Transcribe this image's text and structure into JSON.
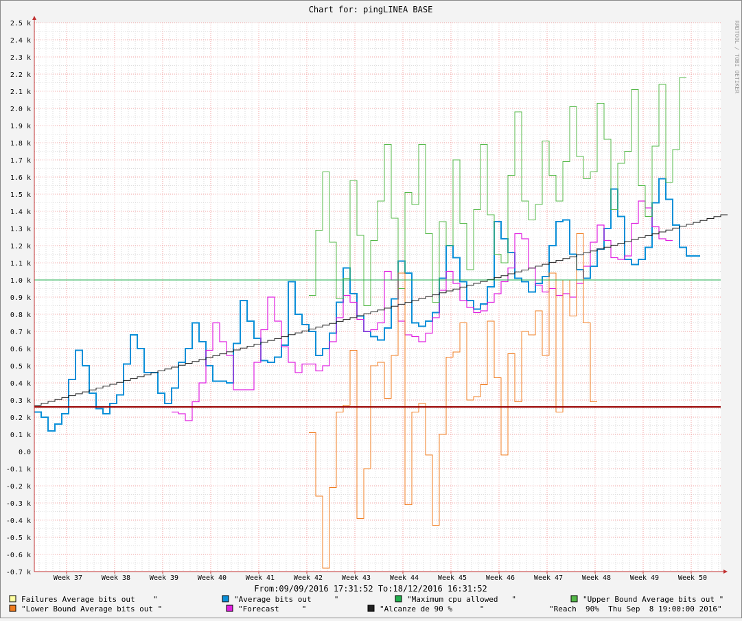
{
  "chart_data": {
    "type": "line",
    "title": "Chart for: pingLINEA BASE",
    "watermark": "RRDTOOL / TOBI OETIKER",
    "date_range": "From:09/09/2016 17:31:52  To:18/12/2016 16:31:52",
    "y_ticks": [
      "2.5 k",
      "2.4 k",
      "2.3 k",
      "2.2 k",
      "2.1 k",
      "2.0 k",
      "1.9 k",
      "1.8 k",
      "1.7 k",
      "1.6 k",
      "1.5 k",
      "1.4 k",
      "1.3 k",
      "1.2 k",
      "1.1 k",
      "1.0 k",
      "0.9 k",
      "0.8 k",
      "0.7 k",
      "0.6 k",
      "0.5 k",
      "0.4 k",
      "0.3 k",
      "0.2 k",
      "0.1 k",
      "0.0",
      "-0.1 k",
      "-0.2 k",
      "-0.3 k",
      "-0.4 k",
      "-0.5 k",
      "-0.6 k",
      "-0.7 k"
    ],
    "ylim": [
      -700,
      2500
    ],
    "x_ticks": [
      "Week 37",
      "Week 38",
      "Week 39",
      "Week 40",
      "Week 41",
      "Week 42",
      "Week 43",
      "Week 44",
      "Week 45",
      "Week 46",
      "Week 47",
      "Week 48",
      "Week 49",
      "Week 50"
    ],
    "grid": true,
    "legend": [
      {
        "label": "Failures Average bits out    \"",
        "color": "#ffffa0"
      },
      {
        "label": "\"Average bits out     \"",
        "color": "#0a8fd8"
      },
      {
        "label": "\"Maximum cpu allowed   \"",
        "color": "#1fae4c"
      },
      {
        "label": "\"Upper Bound Average bits out \"",
        "color": "#54b848"
      },
      {
        "label": "\"Lower Bound Average bits out \"",
        "color": "#f07c20"
      },
      {
        "label": "\"Forecast     \"",
        "color": "#e020e0"
      },
      {
        "label": "\"Alcanze de 90 %      \"",
        "color": "#202020"
      },
      {
        "label": "\"Reach  90%  Thu Sep  8 19:00:00 2016\"",
        "color": null
      }
    ],
    "series": [
      {
        "name": "Average bits out",
        "color": "#0a8fd8",
        "start_x": 50,
        "step_x": 10,
        "values": [
          230,
          200,
          120,
          160,
          220,
          420,
          590,
          500,
          340,
          250,
          220,
          280,
          330,
          510,
          680,
          600,
          460,
          460,
          340,
          280,
          370,
          520,
          600,
          750,
          640,
          500,
          410,
          410,
          400,
          630,
          880,
          760,
          660,
          530,
          520,
          550,
          620,
          990,
          800,
          740,
          700,
          560,
          600,
          690,
          870,
          1070,
          920,
          790,
          700,
          670,
          650,
          720,
          890,
          1110,
          1040,
          750,
          730,
          760,
          810,
          1010,
          1200,
          1130,
          990,
          880,
          830,
          860,
          960,
          1340,
          1240,
          1160,
          1010,
          990,
          930,
          980,
          1020,
          1200,
          1340,
          1350,
          1150,
          1060,
          1010,
          1080,
          1180,
          1300,
          1530,
          1370,
          1120,
          1090,
          1120,
          1190,
          1450,
          1590,
          1470,
          1320,
          1190,
          1140,
          1140
        ]
      },
      {
        "name": "Forecast",
        "color": "#e020e0",
        "start_x": 250,
        "step_x": 10,
        "values": [
          230,
          220,
          180,
          290,
          400,
          590,
          750,
          640,
          560,
          360,
          360,
          360,
          520,
          710,
          900,
          760,
          610,
          520,
          460,
          510,
          510,
          470,
          500,
          640,
          780,
          910,
          870,
          770,
          700,
          710,
          750,
          1050,
          1000,
          760,
          680,
          670,
          640,
          690,
          780,
          940,
          1050,
          980,
          880,
          840,
          810,
          820,
          870,
          920,
          990,
          1070,
          1270,
          1240,
          1070,
          970,
          930,
          950,
          910,
          920,
          900,
          980,
          1080,
          1220,
          1320,
          1230,
          1130,
          1120,
          1140,
          1330,
          1460,
          1420,
          1310,
          1240,
          1230
        ]
      },
      {
        "name": "Upper Bound Average bits out",
        "color": "#54b848",
        "start_x": 450,
        "step_x": 10,
        "values": [
          910,
          1290,
          1630,
          1220,
          890,
          1010,
          1580,
          1260,
          850,
          1230,
          1460,
          1790,
          1360,
          950,
          1510,
          1440,
          1790,
          1270,
          870,
          1340,
          1200,
          1700,
          1330,
          1060,
          1410,
          1790,
          1380,
          1150,
          1100,
          1610,
          1980,
          1460,
          1350,
          1440,
          1810,
          1610,
          1460,
          1690,
          2010,
          1720,
          1590,
          1630,
          2030,
          1820,
          1410,
          1680,
          1750,
          2110,
          1550,
          1370,
          1780,
          2140,
          1570,
          1760,
          2180
        ]
      },
      {
        "name": "Lower Bound Average bits out",
        "color": "#f07c20",
        "start_x": 450,
        "step_x": 10,
        "values": [
          110,
          -260,
          -680,
          -210,
          230,
          270,
          590,
          -390,
          -100,
          500,
          520,
          310,
          560,
          1040,
          -310,
          230,
          280,
          -20,
          -430,
          100,
          550,
          580,
          750,
          300,
          320,
          390,
          760,
          430,
          -20,
          570,
          290,
          700,
          680,
          820,
          560,
          1040,
          230,
          1000,
          790,
          1270,
          750,
          290
        ]
      },
      {
        "name": "Alcanze de 90 %",
        "color": "#202020",
        "trend": [
          [
            50,
            270
          ],
          [
            1050,
            1380
          ]
        ]
      },
      {
        "name": "Maximum cpu allowed",
        "color": "#1fae4c",
        "hline": 1000
      },
      {
        "name": "Failures Average bits out",
        "color": "#990000",
        "hline": 260
      }
    ]
  }
}
